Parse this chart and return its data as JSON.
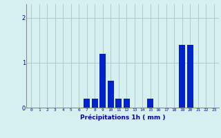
{
  "hours": [
    0,
    1,
    2,
    3,
    4,
    5,
    6,
    7,
    8,
    9,
    10,
    11,
    12,
    13,
    14,
    15,
    16,
    17,
    18,
    19,
    20,
    21,
    22,
    23
  ],
  "values": [
    0,
    0,
    0,
    0,
    0,
    0,
    0,
    0.2,
    0.2,
    1.2,
    0.6,
    0.2,
    0.2,
    0,
    0,
    0.2,
    0,
    0,
    0,
    1.4,
    1.4,
    0,
    0,
    0
  ],
  "bar_color": "#0022cc",
  "background_color": "#d6f0f0",
  "grid_color": "#aacccc",
  "xlabel": "Précipitations 1h ( mm )",
  "xlabel_color": "#0000aa",
  "tick_color": "#0000aa",
  "yticks": [
    0,
    1,
    2
  ],
  "ylim": [
    0,
    2.3
  ],
  "xlim": [
    -0.6,
    23.6
  ]
}
